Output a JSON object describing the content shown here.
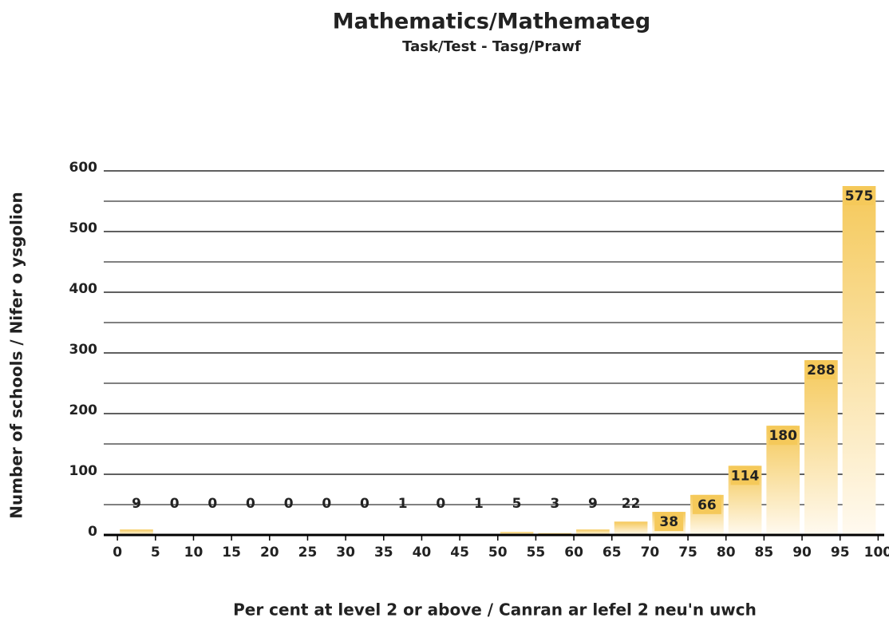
{
  "chart_data": {
    "type": "histogram",
    "title": "Mathematics/Mathemateg",
    "subtitle": "Task/Test - Tasg/Prawf",
    "y_label": "Number of schools / Nifer o ysgolion",
    "x_label": "Per cent at level 2 or above / Canran ar lefel 2 neu'n uwch",
    "bins": [
      0,
      5,
      10,
      15,
      20,
      25,
      30,
      35,
      40,
      45,
      50,
      55,
      60,
      65,
      70,
      75,
      80,
      85,
      90,
      95,
      100
    ],
    "values": [
      9,
      0,
      0,
      0,
      0,
      0,
      0,
      1,
      0,
      1,
      5,
      3,
      9,
      22,
      38,
      66,
      114,
      180,
      288,
      575
    ],
    "color": "#f5c95a",
    "xlim": [
      -1.8,
      100.8
    ],
    "xticks": [
      0,
      5,
      10,
      15,
      20,
      25,
      30,
      35,
      40,
      45,
      50,
      55,
      60,
      65,
      70,
      75,
      80,
      85,
      90,
      95,
      100
    ],
    "ylim": [
      0,
      600
    ],
    "yticks": [
      0,
      100,
      200,
      300,
      400,
      500,
      600
    ],
    "minor_yticks": [
      50,
      150,
      250,
      350,
      450,
      550
    ],
    "grid": true
  }
}
